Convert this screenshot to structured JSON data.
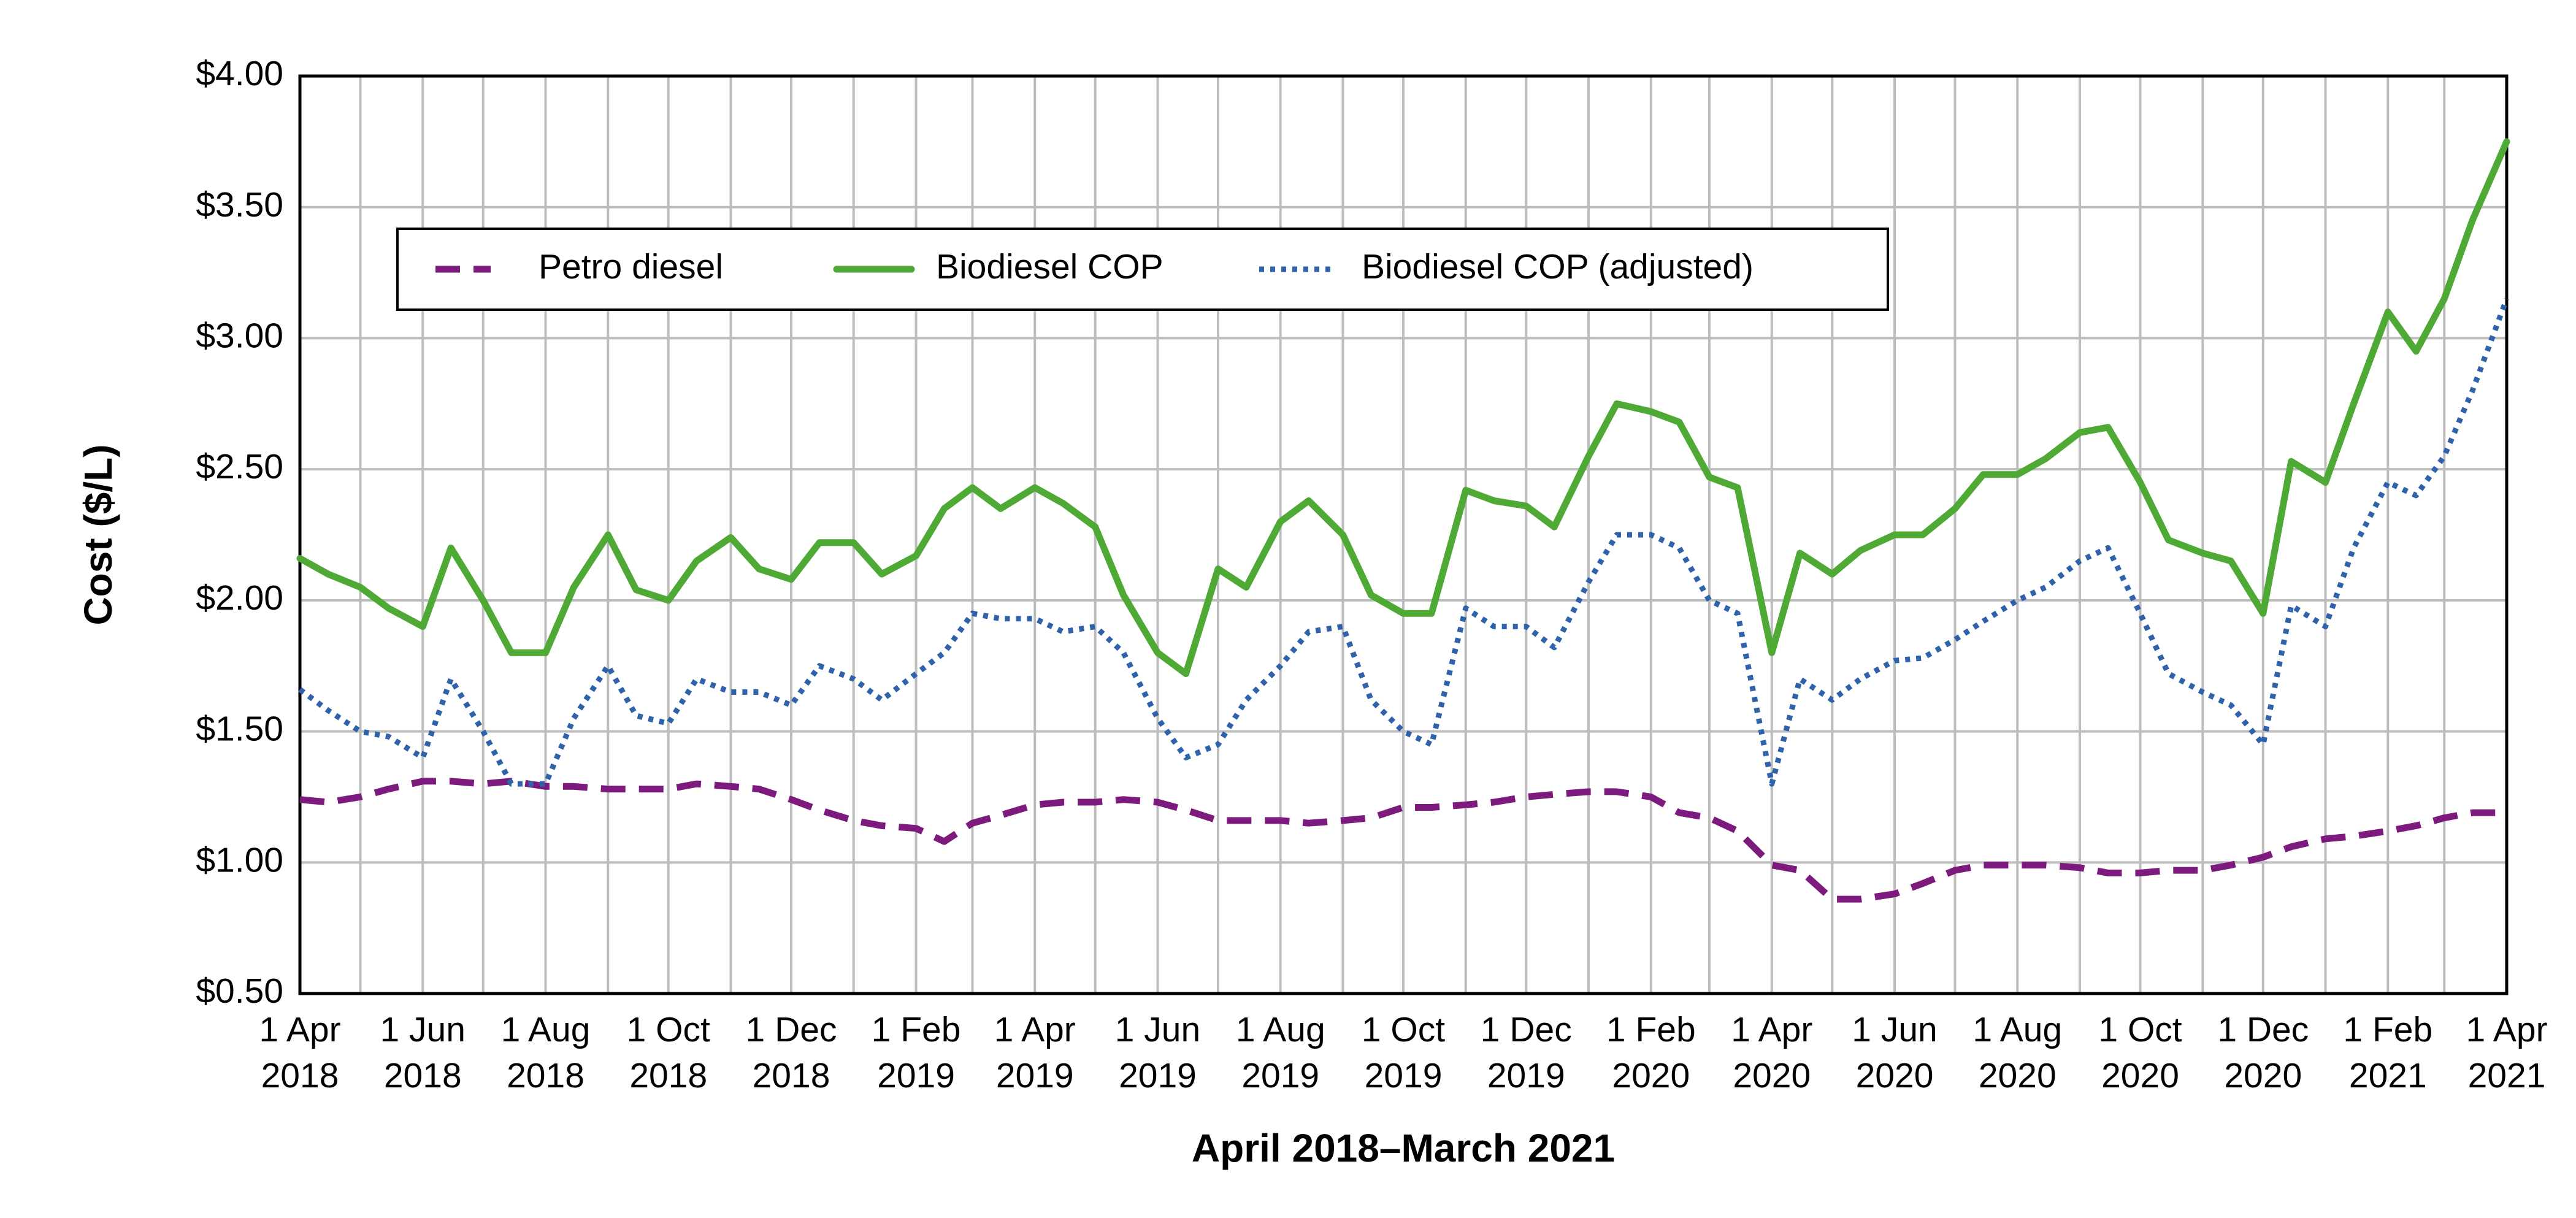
{
  "chart_data": {
    "type": "line",
    "x_label": "April 2018–March 2021",
    "y_label": "Cost ($/L)",
    "x": [
      "2018-04-01",
      "2018-04-15",
      "2018-05-01",
      "2018-05-15",
      "2018-06-01",
      "2018-06-15",
      "2018-07-01",
      "2018-07-15",
      "2018-08-01",
      "2018-08-15",
      "2018-09-01",
      "2018-09-15",
      "2018-10-01",
      "2018-10-15",
      "2018-11-01",
      "2018-11-15",
      "2018-12-01",
      "2018-12-15",
      "2019-01-01",
      "2019-01-15",
      "2019-02-01",
      "2019-02-15",
      "2019-03-01",
      "2019-03-15",
      "2019-04-01",
      "2019-04-15",
      "2019-05-01",
      "2019-05-15",
      "2019-06-01",
      "2019-06-15",
      "2019-07-01",
      "2019-07-15",
      "2019-08-01",
      "2019-08-15",
      "2019-09-01",
      "2019-09-15",
      "2019-10-01",
      "2019-10-15",
      "2019-11-01",
      "2019-11-15",
      "2019-12-01",
      "2019-12-15",
      "2020-01-01",
      "2020-01-15",
      "2020-02-01",
      "2020-02-15",
      "2020-03-01",
      "2020-03-15",
      "2020-04-01",
      "2020-04-15",
      "2020-05-01",
      "2020-05-15",
      "2020-06-01",
      "2020-06-15",
      "2020-07-01",
      "2020-07-15",
      "2020-08-01",
      "2020-08-15",
      "2020-09-01",
      "2020-09-15",
      "2020-10-01",
      "2020-10-15",
      "2020-11-01",
      "2020-11-15",
      "2020-12-01",
      "2020-12-15",
      "2021-01-01",
      "2021-01-15",
      "2021-02-01",
      "2021-02-15",
      "2021-03-01",
      "2021-03-15",
      "2021-04-01"
    ],
    "series": [
      {
        "name": "Petro diesel",
        "color": "#7d1a7d",
        "style": "dashed",
        "values": [
          1.24,
          1.23,
          1.25,
          1.28,
          1.31,
          1.31,
          1.3,
          1.31,
          1.29,
          1.29,
          1.28,
          1.28,
          1.28,
          1.3,
          1.29,
          1.28,
          1.24,
          1.2,
          1.16,
          1.14,
          1.13,
          1.08,
          1.15,
          1.18,
          1.22,
          1.23,
          1.23,
          1.24,
          1.23,
          1.2,
          1.16,
          1.16,
          1.16,
          1.15,
          1.16,
          1.17,
          1.21,
          1.21,
          1.22,
          1.23,
          1.25,
          1.26,
          1.27,
          1.27,
          1.25,
          1.19,
          1.17,
          1.12,
          0.99,
          0.97,
          0.86,
          0.86,
          0.88,
          0.92,
          0.97,
          0.99,
          0.99,
          0.99,
          0.98,
          0.96,
          0.96,
          0.97,
          0.97,
          0.99,
          1.02,
          1.06,
          1.09,
          1.1,
          1.12,
          1.14,
          1.17,
          1.19,
          1.19
        ]
      },
      {
        "name": "Biodiesel COP",
        "color": "#4ea935",
        "style": "solid",
        "values": [
          2.16,
          2.1,
          2.05,
          1.97,
          1.9,
          2.2,
          2.0,
          1.8,
          1.8,
          2.05,
          2.25,
          2.04,
          2.0,
          2.15,
          2.24,
          2.12,
          2.08,
          2.22,
          2.22,
          2.1,
          2.17,
          2.35,
          2.43,
          2.35,
          2.43,
          2.37,
          2.28,
          2.02,
          1.8,
          1.72,
          2.12,
          2.05,
          2.3,
          2.38,
          2.25,
          2.02,
          1.95,
          1.95,
          2.42,
          2.38,
          2.36,
          2.28,
          2.55,
          2.75,
          2.72,
          2.68,
          2.47,
          2.43,
          1.8,
          2.18,
          2.1,
          2.19,
          2.25,
          2.25,
          2.35,
          2.48,
          2.48,
          2.54,
          2.64,
          2.66,
          2.45,
          2.23,
          2.18,
          2.15,
          1.95,
          2.53,
          2.45,
          2.75,
          3.1,
          2.95,
          3.15,
          3.45,
          3.75
        ]
      },
      {
        "name": "Biodiesel COP (adjusted)",
        "color": "#2f62aa",
        "style": "dotted",
        "values": [
          1.66,
          1.58,
          1.5,
          1.48,
          1.4,
          1.7,
          1.5,
          1.3,
          1.3,
          1.55,
          1.75,
          1.56,
          1.53,
          1.7,
          1.65,
          1.65,
          1.6,
          1.75,
          1.7,
          1.62,
          1.72,
          1.8,
          1.95,
          1.93,
          1.93,
          1.88,
          1.9,
          1.8,
          1.55,
          1.4,
          1.45,
          1.62,
          1.75,
          1.88,
          1.9,
          1.62,
          1.5,
          1.45,
          1.97,
          1.9,
          1.9,
          1.82,
          2.07,
          2.25,
          2.25,
          2.2,
          2.0,
          1.95,
          1.3,
          1.7,
          1.62,
          1.7,
          1.77,
          1.78,
          1.85,
          1.92,
          2.0,
          2.05,
          2.15,
          2.2,
          1.95,
          1.72,
          1.65,
          1.6,
          1.45,
          1.98,
          1.9,
          2.2,
          2.45,
          2.4,
          2.55,
          2.8,
          3.15
        ]
      }
    ],
    "xlim": [
      "2018-04-01",
      "2021-04-01"
    ],
    "xticks": [
      {
        "value": "2018-04-01",
        "label": [
          "1 Apr",
          "2018"
        ]
      },
      {
        "value": "2018-05-01",
        "label": null
      },
      {
        "value": "2018-06-01",
        "label": [
          "1 Jun",
          "2018"
        ]
      },
      {
        "value": "2018-07-01",
        "label": null
      },
      {
        "value": "2018-08-01",
        "label": [
          "1 Aug",
          "2018"
        ]
      },
      {
        "value": "2018-09-01",
        "label": null
      },
      {
        "value": "2018-10-01",
        "label": [
          "1 Oct",
          "2018"
        ]
      },
      {
        "value": "2018-11-01",
        "label": null
      },
      {
        "value": "2018-12-01",
        "label": [
          "1 Dec",
          "2018"
        ]
      },
      {
        "value": "2019-01-01",
        "label": null
      },
      {
        "value": "2019-02-01",
        "label": [
          "1 Feb",
          "2019"
        ]
      },
      {
        "value": "2019-03-01",
        "label": null
      },
      {
        "value": "2019-04-01",
        "label": [
          "1 Apr",
          "2019"
        ]
      },
      {
        "value": "2019-05-01",
        "label": null
      },
      {
        "value": "2019-06-01",
        "label": [
          "1 Jun",
          "2019"
        ]
      },
      {
        "value": "2019-07-01",
        "label": null
      },
      {
        "value": "2019-08-01",
        "label": [
          "1 Aug",
          "2019"
        ]
      },
      {
        "value": "2019-09-01",
        "label": null
      },
      {
        "value": "2019-10-01",
        "label": [
          "1 Oct",
          "2019"
        ]
      },
      {
        "value": "2019-11-01",
        "label": null
      },
      {
        "value": "2019-12-01",
        "label": [
          "1 Dec",
          "2019"
        ]
      },
      {
        "value": "2020-01-01",
        "label": null
      },
      {
        "value": "2020-02-01",
        "label": [
          "1 Feb",
          "2020"
        ]
      },
      {
        "value": "2020-03-01",
        "label": null
      },
      {
        "value": "2020-04-01",
        "label": [
          "1 Apr",
          "2020"
        ]
      },
      {
        "value": "2020-05-01",
        "label": null
      },
      {
        "value": "2020-06-01",
        "label": [
          "1 Jun",
          "2020"
        ]
      },
      {
        "value": "2020-07-01",
        "label": null
      },
      {
        "value": "2020-08-01",
        "label": [
          "1 Aug",
          "2020"
        ]
      },
      {
        "value": "2020-09-01",
        "label": null
      },
      {
        "value": "2020-10-01",
        "label": [
          "1 Oct",
          "2020"
        ]
      },
      {
        "value": "2020-11-01",
        "label": null
      },
      {
        "value": "2020-12-01",
        "label": [
          "1 Dec",
          "2020"
        ]
      },
      {
        "value": "2021-01-01",
        "label": null
      },
      {
        "value": "2021-02-01",
        "label": [
          "1 Feb",
          "2021"
        ]
      },
      {
        "value": "2021-03-01",
        "label": null
      },
      {
        "value": "2021-04-01",
        "label": [
          "1 Apr",
          "2021"
        ]
      }
    ],
    "ylim": [
      0.5,
      4.0
    ],
    "yticks": [
      {
        "value": 0.5,
        "label": "$0.50"
      },
      {
        "value": 1,
        "label": "$1.00"
      },
      {
        "value": 1.5,
        "label": "$1.50"
      },
      {
        "value": 2,
        "label": "$2.00"
      },
      {
        "value": 2.5,
        "label": "$2.50"
      },
      {
        "value": 3,
        "label": "$3.00"
      },
      {
        "value": 3.5,
        "label": "$3.50"
      },
      {
        "value": 4,
        "label": "$4.00"
      }
    ],
    "grid": true,
    "legend": "upper left"
  }
}
